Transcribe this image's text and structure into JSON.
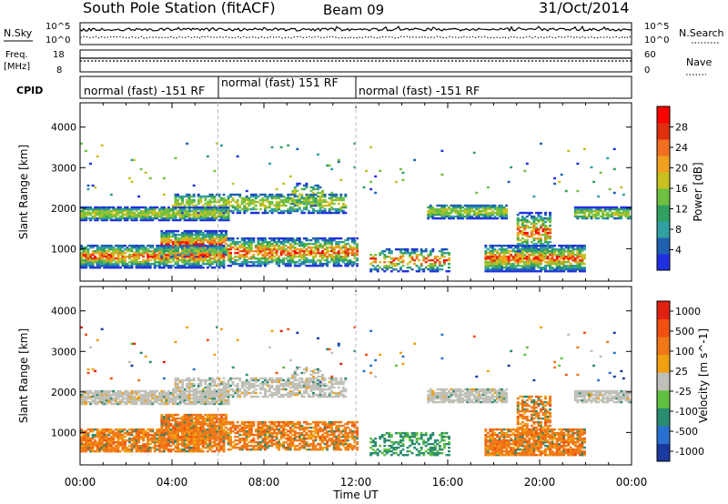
{
  "header": {
    "station": "South Pole Station (fitACF)",
    "beam": "Beam 09",
    "date": "31/Oct/2014"
  },
  "top_panels": {
    "nsky": {
      "label": "N.Sky",
      "right_label": "N.Search",
      "left_ticks": [
        "10^5",
        "10^0"
      ],
      "right_ticks": [
        "10^5",
        "10^0"
      ]
    },
    "freq": {
      "label_line1": "Freq.",
      "label_line2": "[MHz]",
      "right_label": "Nave",
      "left_ticks": [
        "18",
        "8"
      ],
      "right_ticks": [
        "60",
        "0"
      ]
    },
    "cpid": {
      "label": "CPID",
      "segments": [
        "normal (fast) -151 RF",
        "normal (fast) 151 RF",
        "normal (fast) -151 RF"
      ]
    }
  },
  "chart_data": [
    {
      "type": "heatmap",
      "title": "",
      "ylabel": "Slant Range [km]",
      "ylim": [
        200,
        4600
      ],
      "yticks": [
        "1000",
        "2000",
        "3000",
        "4000"
      ],
      "xlim_hours": [
        0,
        24
      ],
      "xticks": [
        "00:00",
        "04:00",
        "08:00",
        "12:00",
        "16:00",
        "20:00",
        "00:00"
      ],
      "colorbar": {
        "label": "Power [dB]",
        "ticks": [
          "4",
          "8",
          "12",
          "16",
          "20",
          "24",
          "28"
        ],
        "colors": [
          "#2030e0",
          "#2060b0",
          "#30a0a0",
          "#30a060",
          "#70c040",
          "#c8c020",
          "#f0a020",
          "#f07020",
          "#e03010",
          "#ff0000"
        ]
      }
    },
    {
      "type": "heatmap",
      "title": "",
      "ylabel": "Slant Range [km]",
      "xlabel": "Time UT",
      "ylim": [
        200,
        4600
      ],
      "yticks": [
        "1000",
        "2000",
        "3000",
        "4000"
      ],
      "xlim_hours": [
        0,
        24
      ],
      "xticks": [
        "00:00",
        "04:00",
        "08:00",
        "12:00",
        "16:00",
        "20:00",
        "00:00"
      ],
      "colorbar": {
        "label": "Velocity [m s^-1]",
        "ticks": [
          "1000",
          "500",
          "100",
          "25",
          "-25",
          "-100",
          "-500",
          "-1000"
        ],
        "colors": [
          "#1a3aa0",
          "#2a70d0",
          "#2a8c70",
          "#60c040",
          "#c0c0b8",
          "#f0a010",
          "#f07818",
          "#f05010",
          "#e02010"
        ]
      }
    }
  ],
  "footer": {
    "xlabel": "Time UT"
  }
}
